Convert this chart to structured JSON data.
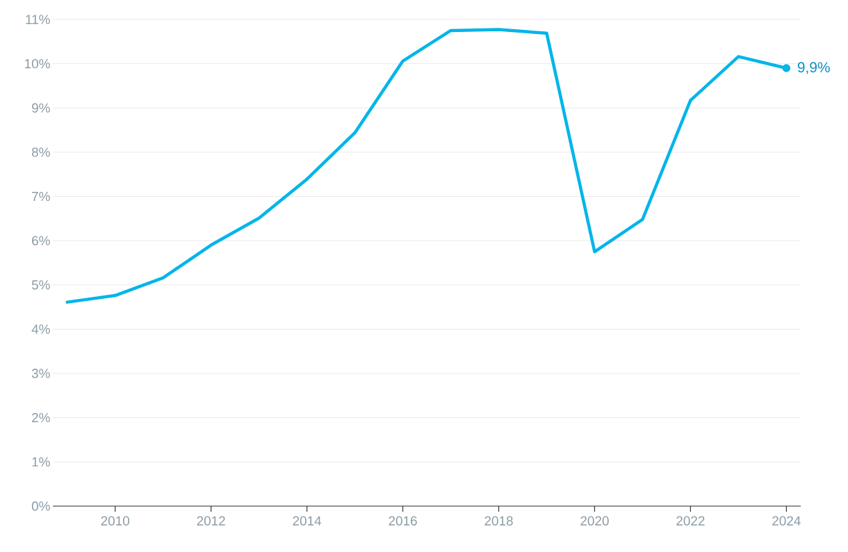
{
  "chart_data": {
    "type": "line",
    "color": "#00b5e9",
    "x": [
      2009,
      2010,
      2011,
      2012,
      2013,
      2014,
      2015,
      2016,
      2017,
      2018,
      2019,
      2020,
      2021,
      2022,
      2023,
      2024
    ],
    "values": [
      4.61,
      4.76,
      5.16,
      5.9,
      6.51,
      7.39,
      8.44,
      10.06,
      10.75,
      10.77,
      10.69,
      5.75,
      6.48,
      9.17,
      10.16,
      9.9
    ],
    "xlim": [
      2008.7,
      2024.3
    ],
    "xticks": [
      2010,
      2012,
      2014,
      2016,
      2018,
      2020,
      2022,
      2024
    ],
    "ylim": [
      0,
      11
    ],
    "yticks": [
      {
        "value": 0,
        "label": "0%"
      },
      {
        "value": 1,
        "label": "1%"
      },
      {
        "value": 2,
        "label": "2%"
      },
      {
        "value": 3,
        "label": "3%"
      },
      {
        "value": 4,
        "label": "4%"
      },
      {
        "value": 5,
        "label": "5%"
      },
      {
        "value": 6,
        "label": "6%"
      },
      {
        "value": 7,
        "label": "7%"
      },
      {
        "value": 8,
        "label": "8%"
      },
      {
        "value": 9,
        "label": "9%"
      },
      {
        "value": 10,
        "label": "10%"
      },
      {
        "value": 11,
        "label": "11%"
      }
    ],
    "grid": "y",
    "line_style": "solid",
    "annotations": [
      {
        "text": "9,9%",
        "x": 2024,
        "y": 9.9
      }
    ]
  }
}
